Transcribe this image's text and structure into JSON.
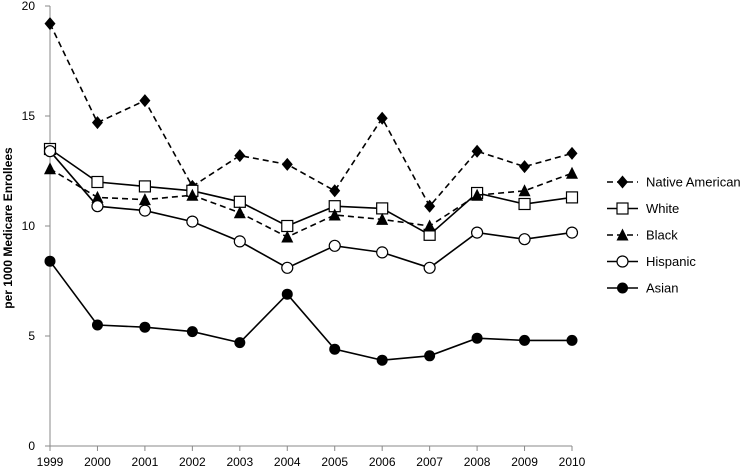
{
  "chart_data": {
    "type": "line",
    "title": "",
    "xlabel": "",
    "ylabel": "per 1000 Medicare Enrollees",
    "x": [
      1999,
      2000,
      2001,
      2002,
      2003,
      2004,
      2005,
      2006,
      2007,
      2008,
      2009,
      2010
    ],
    "ylim": [
      0,
      20
    ],
    "yticks": [
      0,
      5,
      10,
      15,
      20
    ],
    "grid": false,
    "legend_position": "right",
    "series": [
      {
        "name": "Native American",
        "dash": "dashed",
        "marker": "diamond-filled",
        "values": [
          19.2,
          14.7,
          15.7,
          11.8,
          13.2,
          12.8,
          11.6,
          14.9,
          10.9,
          13.4,
          12.7,
          13.3
        ]
      },
      {
        "name": "White",
        "dash": "solid",
        "marker": "square-open",
        "values": [
          13.5,
          12.0,
          11.8,
          11.6,
          11.1,
          10.0,
          10.9,
          10.8,
          9.6,
          11.5,
          11.0,
          11.3
        ]
      },
      {
        "name": "Black",
        "dash": "dashed",
        "marker": "triangle-filled",
        "values": [
          12.6,
          11.3,
          11.2,
          11.4,
          10.6,
          9.5,
          10.5,
          10.3,
          10.0,
          11.4,
          11.6,
          12.4
        ]
      },
      {
        "name": "Hispanic",
        "dash": "solid",
        "marker": "circle-open",
        "values": [
          13.4,
          10.9,
          10.7,
          10.2,
          9.3,
          8.1,
          9.1,
          8.8,
          8.1,
          9.7,
          9.4,
          9.7
        ]
      },
      {
        "name": "Asian",
        "dash": "solid",
        "marker": "circle-filled",
        "values": [
          8.4,
          5.5,
          5.4,
          5.2,
          4.7,
          6.9,
          4.4,
          3.9,
          4.1,
          4.9,
          4.8,
          4.8
        ]
      }
    ]
  }
}
